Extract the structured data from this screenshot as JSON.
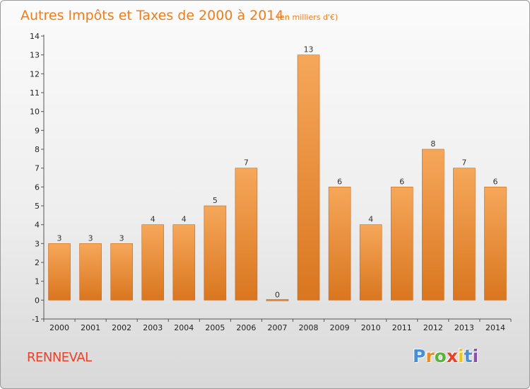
{
  "header": {
    "title": "Autres Impôts et Taxes de 2000 à 2014",
    "unit": "(en milliers d'€)"
  },
  "footer": {
    "commune": "RENNEVAL",
    "logo_text": "Proxiti"
  },
  "colors": {
    "title": "#ef7d1a",
    "commune": "#e8412a",
    "bar_light": "#f6a75a",
    "bar_dark": "#d9761f",
    "logo": [
      "#4a8fd6",
      "#f08a1e",
      "#5ab43c",
      "#e8412a",
      "#f0c419",
      "#4a8fd6",
      "#8a4fb0"
    ]
  },
  "chart_data": {
    "type": "bar",
    "categories": [
      "2000",
      "2001",
      "2002",
      "2003",
      "2004",
      "2005",
      "2006",
      "2007",
      "2008",
      "2009",
      "2010",
      "2011",
      "2012",
      "2013",
      "2014"
    ],
    "values": [
      3,
      3,
      3,
      4,
      4,
      5,
      7,
      0,
      13,
      6,
      4,
      6,
      8,
      7,
      6
    ],
    "data_labels": [
      "3",
      "3",
      "3",
      "4",
      "4",
      "5",
      "7",
      "0",
      "13",
      "6",
      "4",
      "6",
      "8",
      "7",
      "6"
    ],
    "y_ticks": [
      "-1",
      "0",
      "1",
      "2",
      "3",
      "4",
      "5",
      "6",
      "7",
      "8",
      "9",
      "10",
      "11",
      "12",
      "13",
      "14"
    ],
    "ylim": [
      -1,
      14
    ],
    "grid": false,
    "xlabel": "",
    "ylabel": ""
  }
}
